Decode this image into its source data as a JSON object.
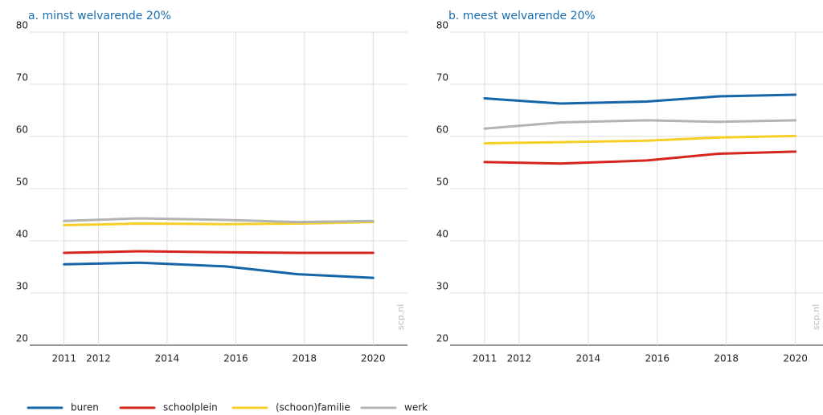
{
  "chart_data": [
    {
      "type": "line",
      "title": "a. minst welvarende 20%",
      "watermark": "scp.nl",
      "x": [
        2011,
        2013.2,
        2015.7,
        2017.8,
        2020
      ],
      "xlim": [
        2010,
        2021
      ],
      "xticks": [
        2011,
        2012,
        2014,
        2016,
        2018,
        2020
      ],
      "ylim": [
        20,
        80
      ],
      "yticks": [
        20,
        30,
        40,
        50,
        60,
        70,
        80
      ],
      "grid": true,
      "series": [
        {
          "name": "buren",
          "color": "#1565a8",
          "values": [
            35.5,
            35.8,
            35.1,
            33.6,
            32.9
          ]
        },
        {
          "name": "schoolplein",
          "color": "#d7261e",
          "values": [
            37.7,
            38.0,
            37.8,
            37.7,
            37.7
          ]
        },
        {
          "name": "(schoon)familie",
          "color": "#f5cf27",
          "values": [
            43.0,
            43.3,
            43.2,
            43.3,
            43.6
          ]
        },
        {
          "name": "werk",
          "color": "#b3b3b3",
          "values": [
            43.8,
            44.3,
            44.0,
            43.6,
            43.8
          ]
        }
      ]
    },
    {
      "type": "line",
      "title": "b. meest welvarende 20%",
      "watermark": "scp.nl",
      "x": [
        2011,
        2013.2,
        2015.7,
        2017.8,
        2020
      ],
      "xlim": [
        2010,
        2020.8
      ],
      "xticks": [
        2011,
        2012,
        2014,
        2016,
        2018,
        2020
      ],
      "ylim": [
        20,
        80
      ],
      "yticks": [
        20,
        30,
        40,
        50,
        60,
        70,
        80
      ],
      "grid": true,
      "series": [
        {
          "name": "buren",
          "color": "#1565a8",
          "values": [
            67.3,
            66.3,
            66.7,
            67.7,
            68.0
          ]
        },
        {
          "name": "schoolplein",
          "color": "#d7261e",
          "values": [
            55.1,
            54.8,
            55.4,
            56.7,
            57.1
          ]
        },
        {
          "name": "(schoon)familie",
          "color": "#f5cf27",
          "values": [
            58.7,
            58.9,
            59.2,
            59.8,
            60.1
          ]
        },
        {
          "name": "werk",
          "color": "#b3b3b3",
          "values": [
            61.5,
            62.7,
            63.1,
            62.8,
            63.1
          ]
        }
      ]
    }
  ]
}
